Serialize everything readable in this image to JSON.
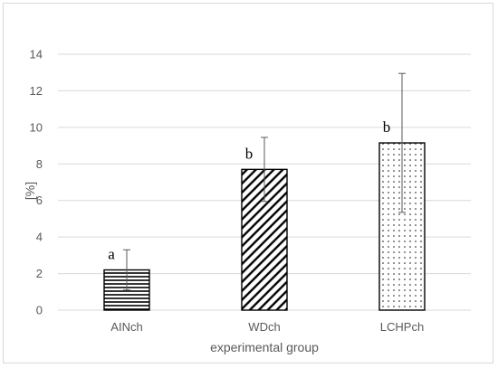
{
  "chart_data": {
    "type": "bar",
    "title": "",
    "xlabel": "experimental group",
    "ylabel": "[%]",
    "categories": [
      "AINch",
      "WDch",
      "LCHPch"
    ],
    "values": [
      2.2,
      7.7,
      9.15
    ],
    "errors": [
      1.1,
      1.75,
      3.8
    ],
    "significance": [
      "a",
      "b",
      "b"
    ],
    "patterns": [
      "horizontal-lines",
      "diagonal-lines",
      "dots"
    ],
    "ylim": [
      0,
      14
    ],
    "yticks": [
      0,
      2,
      4,
      6,
      8,
      10,
      12,
      14
    ],
    "grid": true,
    "legend": "none",
    "colors": {
      "bar_stroke": "#000000",
      "grid": "#d9d9d9",
      "text": "#595959"
    }
  }
}
